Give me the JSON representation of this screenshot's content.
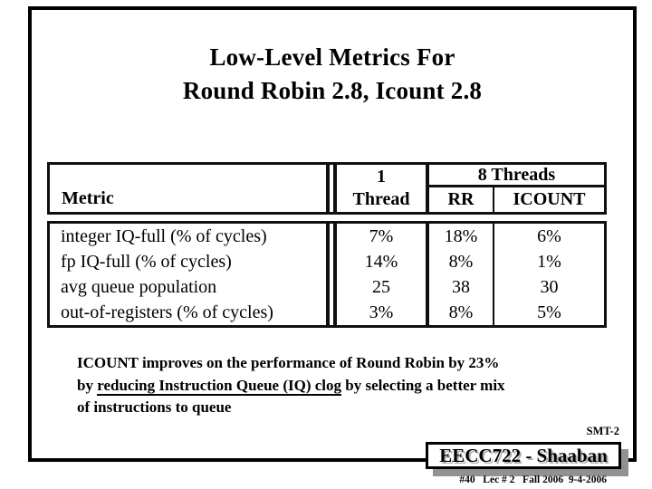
{
  "slide": {
    "title_line1": "Low-Level Metrics For",
    "title_line2": "Round Robin 2.8, Icount 2.8"
  },
  "table": {
    "headers": {
      "metric": "Metric",
      "one_thread_line1": "1",
      "one_thread_line2": "Thread",
      "eight_threads": "8 Threads",
      "rr": "RR",
      "icount": "ICOUNT"
    },
    "rows": [
      {
        "metric": "integer IQ-full (% of cycles)",
        "one_thread": "7%",
        "rr": "18%",
        "icount": "6%"
      },
      {
        "metric": "fp IQ-full (% of cycles)",
        "one_thread": "14%",
        "rr": "8%",
        "icount": "1%"
      },
      {
        "metric": "avg queue population",
        "one_thread": "25",
        "rr": "38",
        "icount": "30"
      },
      {
        "metric": "out-of-registers (% of cycles)",
        "one_thread": "3%",
        "rr": "8%",
        "icount": "5%"
      }
    ]
  },
  "note": {
    "line1": "ICOUNT improves on the performance of Round Robin by 23%",
    "line2_pre": "by ",
    "line2_underline": "reducing Instruction Queue (IQ) clog",
    "line2_post": " by selecting a better mix",
    "line3": "of instructions to queue"
  },
  "footer": {
    "slide_tag": "SMT-2",
    "course_title": "EECC722 - Shaaban",
    "lecture_info": "#40   Lec # 2   Fall 2006  9-4-2006"
  },
  "colors": {
    "ink": "#000000",
    "table_ink": "#101010",
    "shadow_gray": "#919191",
    "text_shadow_gray": "#b3b3b3"
  }
}
